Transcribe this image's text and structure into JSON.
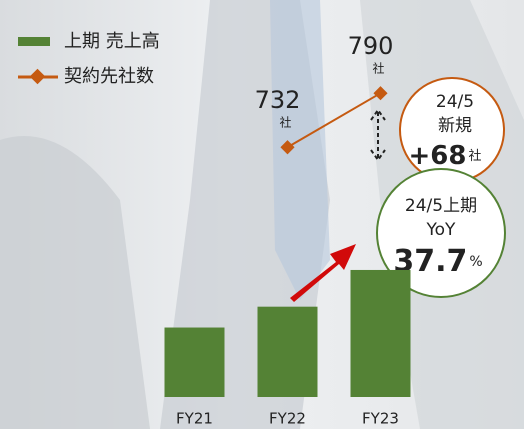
{
  "chart_data": {
    "type": "bar",
    "categories": [
      "FY21",
      "FY22",
      "FY23"
    ],
    "series": [
      {
        "name": "上期 売上高",
        "color": "#548235",
        "values": [
          70,
          91,
          128
        ]
      },
      {
        "name": "契約先社数",
        "type": "line",
        "axis": "y2",
        "color": "#c55a11",
        "values": [
          null,
          732,
          790
        ],
        "unit": "社"
      }
    ],
    "ylim": [
      0,
      400
    ],
    "y2lim": [
      464,
      890
    ],
    "annotations": [
      {
        "lines": [
          "24/5",
          "新規"
        ],
        "value": "+68",
        "unit": "社",
        "color": "#c55a11"
      },
      {
        "lines": [
          "24/5上期",
          "YoY"
        ],
        "value": "37.7",
        "unit": "%",
        "color": "#548235"
      }
    ]
  }
}
